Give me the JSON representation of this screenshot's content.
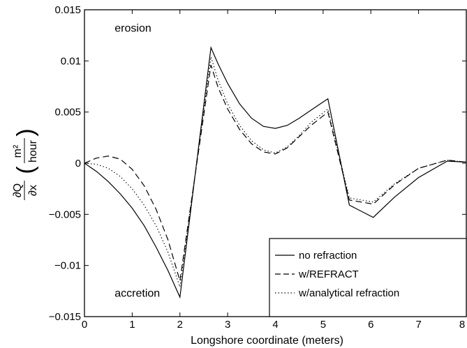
{
  "chart_data": {
    "type": "line",
    "title": "",
    "xlabel": "Longshore coordinate (meters)",
    "ylabel": {
      "numerator": "∂Q",
      "denominator": "∂x",
      "unit_numerator": "m²",
      "unit_denominator": "hour"
    },
    "xlim": [
      0,
      8
    ],
    "ylim": [
      -0.015,
      0.015
    ],
    "x_ticks": [
      0,
      1,
      2,
      3,
      4,
      5,
      6,
      7,
      8
    ],
    "x_tick_labels": [
      "0",
      "1",
      "2",
      "3",
      "4",
      "5",
      "6",
      "7",
      "8"
    ],
    "y_ticks": [
      -0.015,
      -0.01,
      -0.005,
      0,
      0.005,
      0.01,
      0.015
    ],
    "y_tick_labels": [
      "−0.015",
      "−0.01",
      "−0.005",
      "0",
      "0.005",
      "0.01",
      "0.015"
    ],
    "grid": false,
    "legend_position": "bottom-right",
    "annotations": [
      {
        "text": "erosion",
        "x": 0.75,
        "y": 0.0132
      },
      {
        "text": "accretion",
        "x": 0.75,
        "y": -0.0127
      }
    ],
    "series": [
      {
        "name": "no refraction",
        "style": "solid",
        "x": [
          0,
          0.25,
          0.5,
          0.75,
          1.0,
          1.25,
          1.5,
          1.75,
          2.0,
          2.65,
          2.8,
          3.0,
          3.25,
          3.5,
          3.75,
          4.0,
          4.25,
          4.5,
          4.75,
          5.1,
          5.55,
          6.05,
          6.5,
          7.0,
          7.6,
          8.0
        ],
        "y": [
          0,
          -0.0008,
          -0.0018,
          -0.003,
          -0.0044,
          -0.0061,
          -0.0082,
          -0.0105,
          -0.0131,
          0.0113,
          0.0097,
          0.0078,
          0.0058,
          0.0044,
          0.0036,
          0.0034,
          0.0037,
          0.0044,
          0.0052,
          0.0063,
          -0.0041,
          -0.0053,
          -0.0033,
          -0.0014,
          0.0002,
          0.0001
        ]
      },
      {
        "name": "w/REFRACT",
        "style": "dashed",
        "x": [
          0,
          0.25,
          0.5,
          0.75,
          1.0,
          1.25,
          1.5,
          1.75,
          2.0,
          2.65,
          2.8,
          3.0,
          3.25,
          3.5,
          3.75,
          4.0,
          4.25,
          4.5,
          4.75,
          5.1,
          5.55,
          6.05,
          6.5,
          7.0,
          7.6,
          8.0
        ],
        "y": [
          0,
          0.0005,
          0.0007,
          0.0004,
          -0.0006,
          -0.0022,
          -0.0045,
          -0.0075,
          -0.0115,
          0.0096,
          0.0074,
          0.0053,
          0.0033,
          0.0019,
          0.0011,
          0.0009,
          0.0015,
          0.0026,
          0.0037,
          0.005,
          -0.0036,
          -0.004,
          -0.0021,
          -0.0005,
          0.0003,
          0.0001
        ]
      },
      {
        "name": "w/analytical refraction",
        "style": "dotted",
        "x": [
          0,
          0.25,
          0.5,
          0.75,
          1.0,
          1.25,
          1.5,
          1.75,
          2.0,
          2.65,
          2.8,
          3.0,
          3.25,
          3.5,
          3.75,
          4.0,
          4.25,
          4.5,
          4.75,
          5.1,
          5.55,
          6.05,
          6.5,
          7.0,
          7.6,
          8.0
        ],
        "y": [
          0,
          -0.0001,
          -0.0005,
          -0.0013,
          -0.0025,
          -0.0041,
          -0.0061,
          -0.0087,
          -0.0121,
          0.0104,
          0.0081,
          0.0058,
          0.0037,
          0.0022,
          0.0013,
          0.001,
          0.0016,
          0.0027,
          0.004,
          0.0053,
          -0.0034,
          -0.0038,
          -0.002,
          -0.0005,
          0.0003,
          0.0001
        ]
      }
    ]
  }
}
